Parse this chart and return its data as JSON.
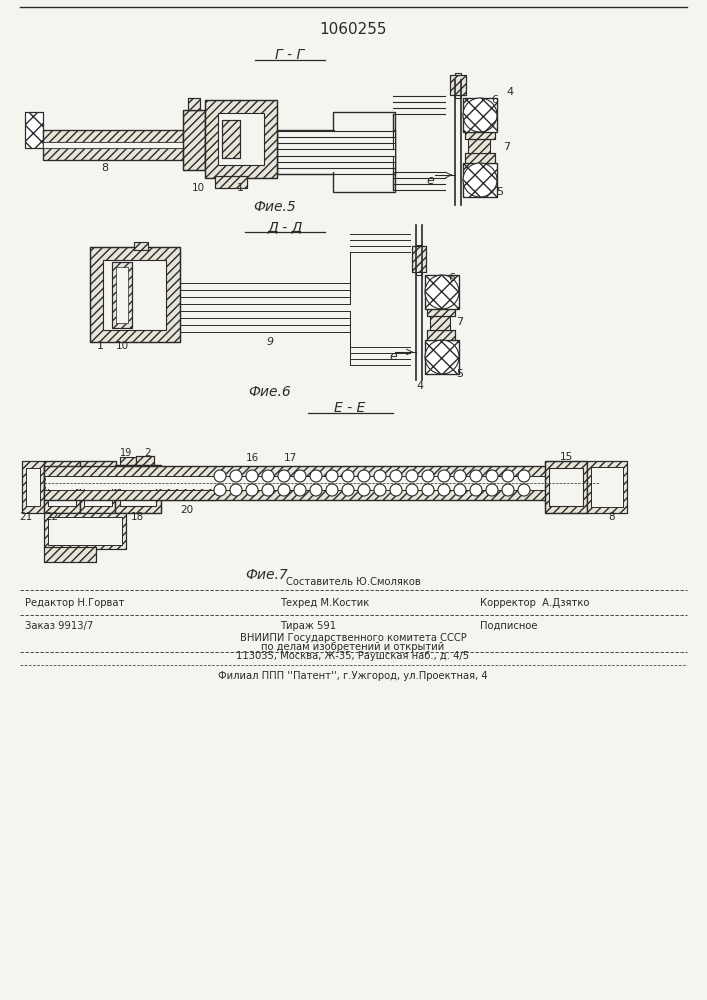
{
  "patent_number": "1060255",
  "background_color": "#f5f5f0",
  "line_color": "#2a2a2a",
  "fig5_label": "Г - Г",
  "fig5_caption": "Фие.5",
  "fig6_label": "Д - Д",
  "fig6_caption": "Фие.6",
  "fig7_label": "Е - Е",
  "fig7_caption": "Фие.7",
  "footer_line1_center": "Составитель Ю.Смоляков",
  "footer_line2_left": "Редактор Н.Горват",
  "footer_line2_center": "Техред М.Костик",
  "footer_line2_right": "Корректор  А.Дзятко",
  "footer_line3_left": "Заказ 9913/7",
  "footer_line3_center": "Тираж 591",
  "footer_line3_right": "Подписное",
  "footer_line4": "ВНИИПИ Государственного комитета СССР",
  "footer_line5": "по делам изобретений и открытий",
  "footer_line6": "113035, Москва, Ж-35, Раушская наб., д. 4/5",
  "footer_line7": "Филиал ППП ''Патент'', г.Ужгород, ул.Проектная, 4"
}
